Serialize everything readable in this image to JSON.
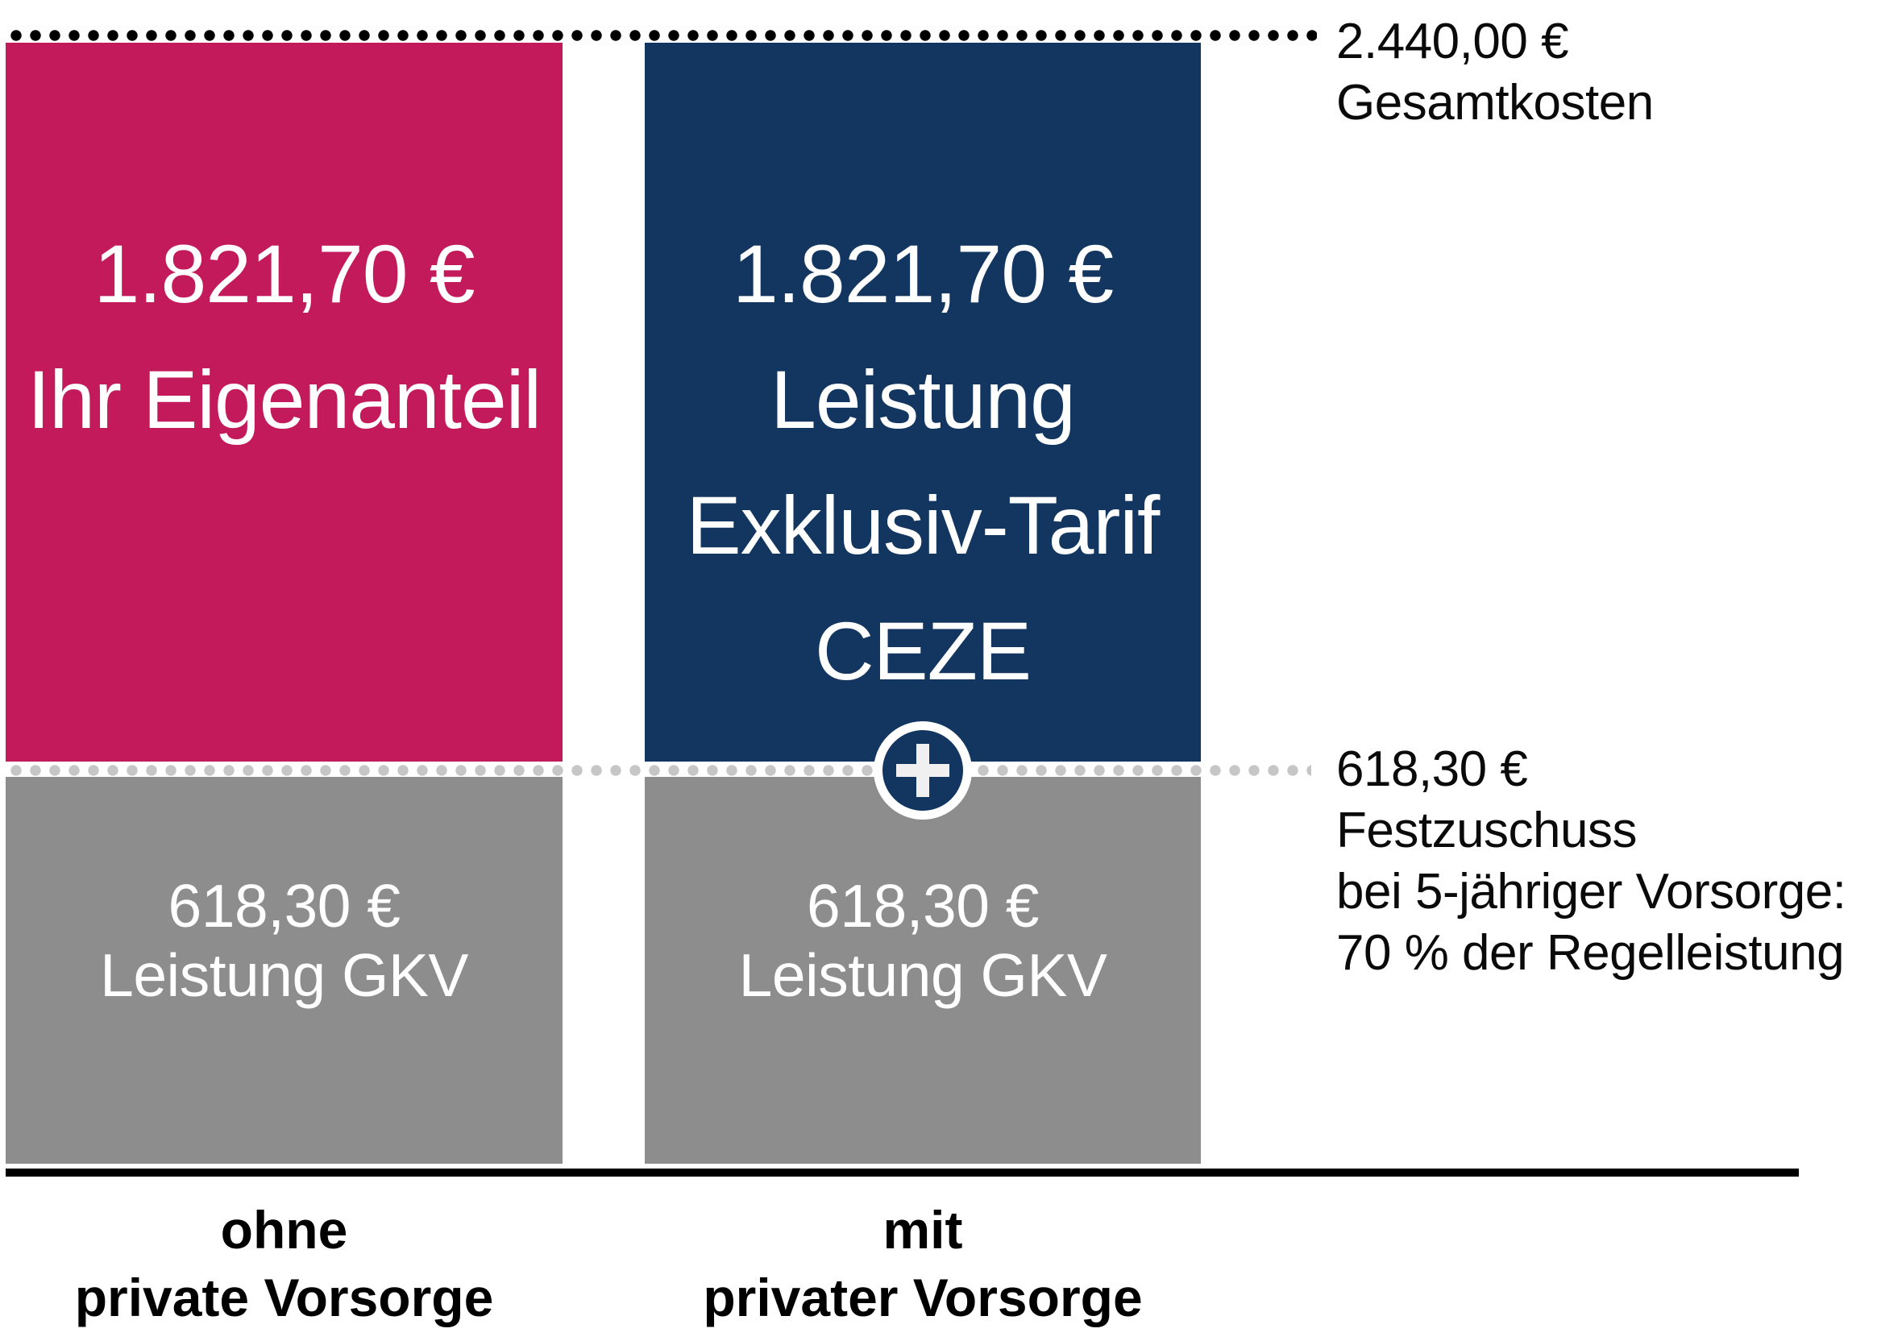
{
  "chart_data": {
    "type": "bar",
    "title": "",
    "unit": "EUR",
    "categories": [
      "ohne private Vorsorge",
      "mit privater Vorsorge"
    ],
    "series": [
      {
        "name": "Leistung GKV",
        "values": [
          618.3,
          618.3
        ],
        "color": "#8d8d8d"
      },
      {
        "name": "Ihr Eigenanteil",
        "values": [
          1821.7,
          0
        ],
        "color": "#c31a5c"
      },
      {
        "name": "Leistung Exklusiv-Tarif CEZE",
        "values": [
          0,
          1821.7
        ],
        "color": "#12365f"
      }
    ],
    "total_reference": {
      "value": 2440.0,
      "label": "Gesamtkosten"
    },
    "subsidy_reference": {
      "value": 618.3,
      "label": "Festzuschuss bei 5-jähriger Vorsorge: 70 % der Regelleistung"
    },
    "legend_position": "none",
    "grid": false,
    "ylim": [
      0,
      2440
    ]
  },
  "left_bar": {
    "value": "1.821,70 €",
    "label": "Ihr Eigenanteil",
    "gkv_value": "618,30 €",
    "gkv_label": "Leistung GKV",
    "caption_line1": "ohne",
    "caption_line2": "private Vorsorge"
  },
  "right_bar": {
    "value": "1.821,70 €",
    "label_line1": "Leistung",
    "label_line2": "Exklusiv-Tarif",
    "label_line3": "CEZE",
    "gkv_value": "618,30 €",
    "gkv_label": "Leistung GKV",
    "caption_line1": "mit",
    "caption_line2": "privater Vorsorge"
  },
  "annotations": {
    "total_line1": "2.440,00 €",
    "total_line2": "Gesamtkosten",
    "subsidy_line1": "618,30 €",
    "subsidy_line2": "Festzuschuss",
    "subsidy_line3": "bei 5-jähriger Vorsorge:",
    "subsidy_line4": "70 % der Regelleistung"
  },
  "icons": {
    "plus": "+"
  },
  "colors": {
    "magenta": "#c31a5c",
    "navy": "#12365f",
    "bar_gray": "#8d8d8d",
    "dot_gray": "#c6c6c6",
    "dot_black": "#000000",
    "text_white": "#ffffff",
    "text_black": "#000000"
  }
}
